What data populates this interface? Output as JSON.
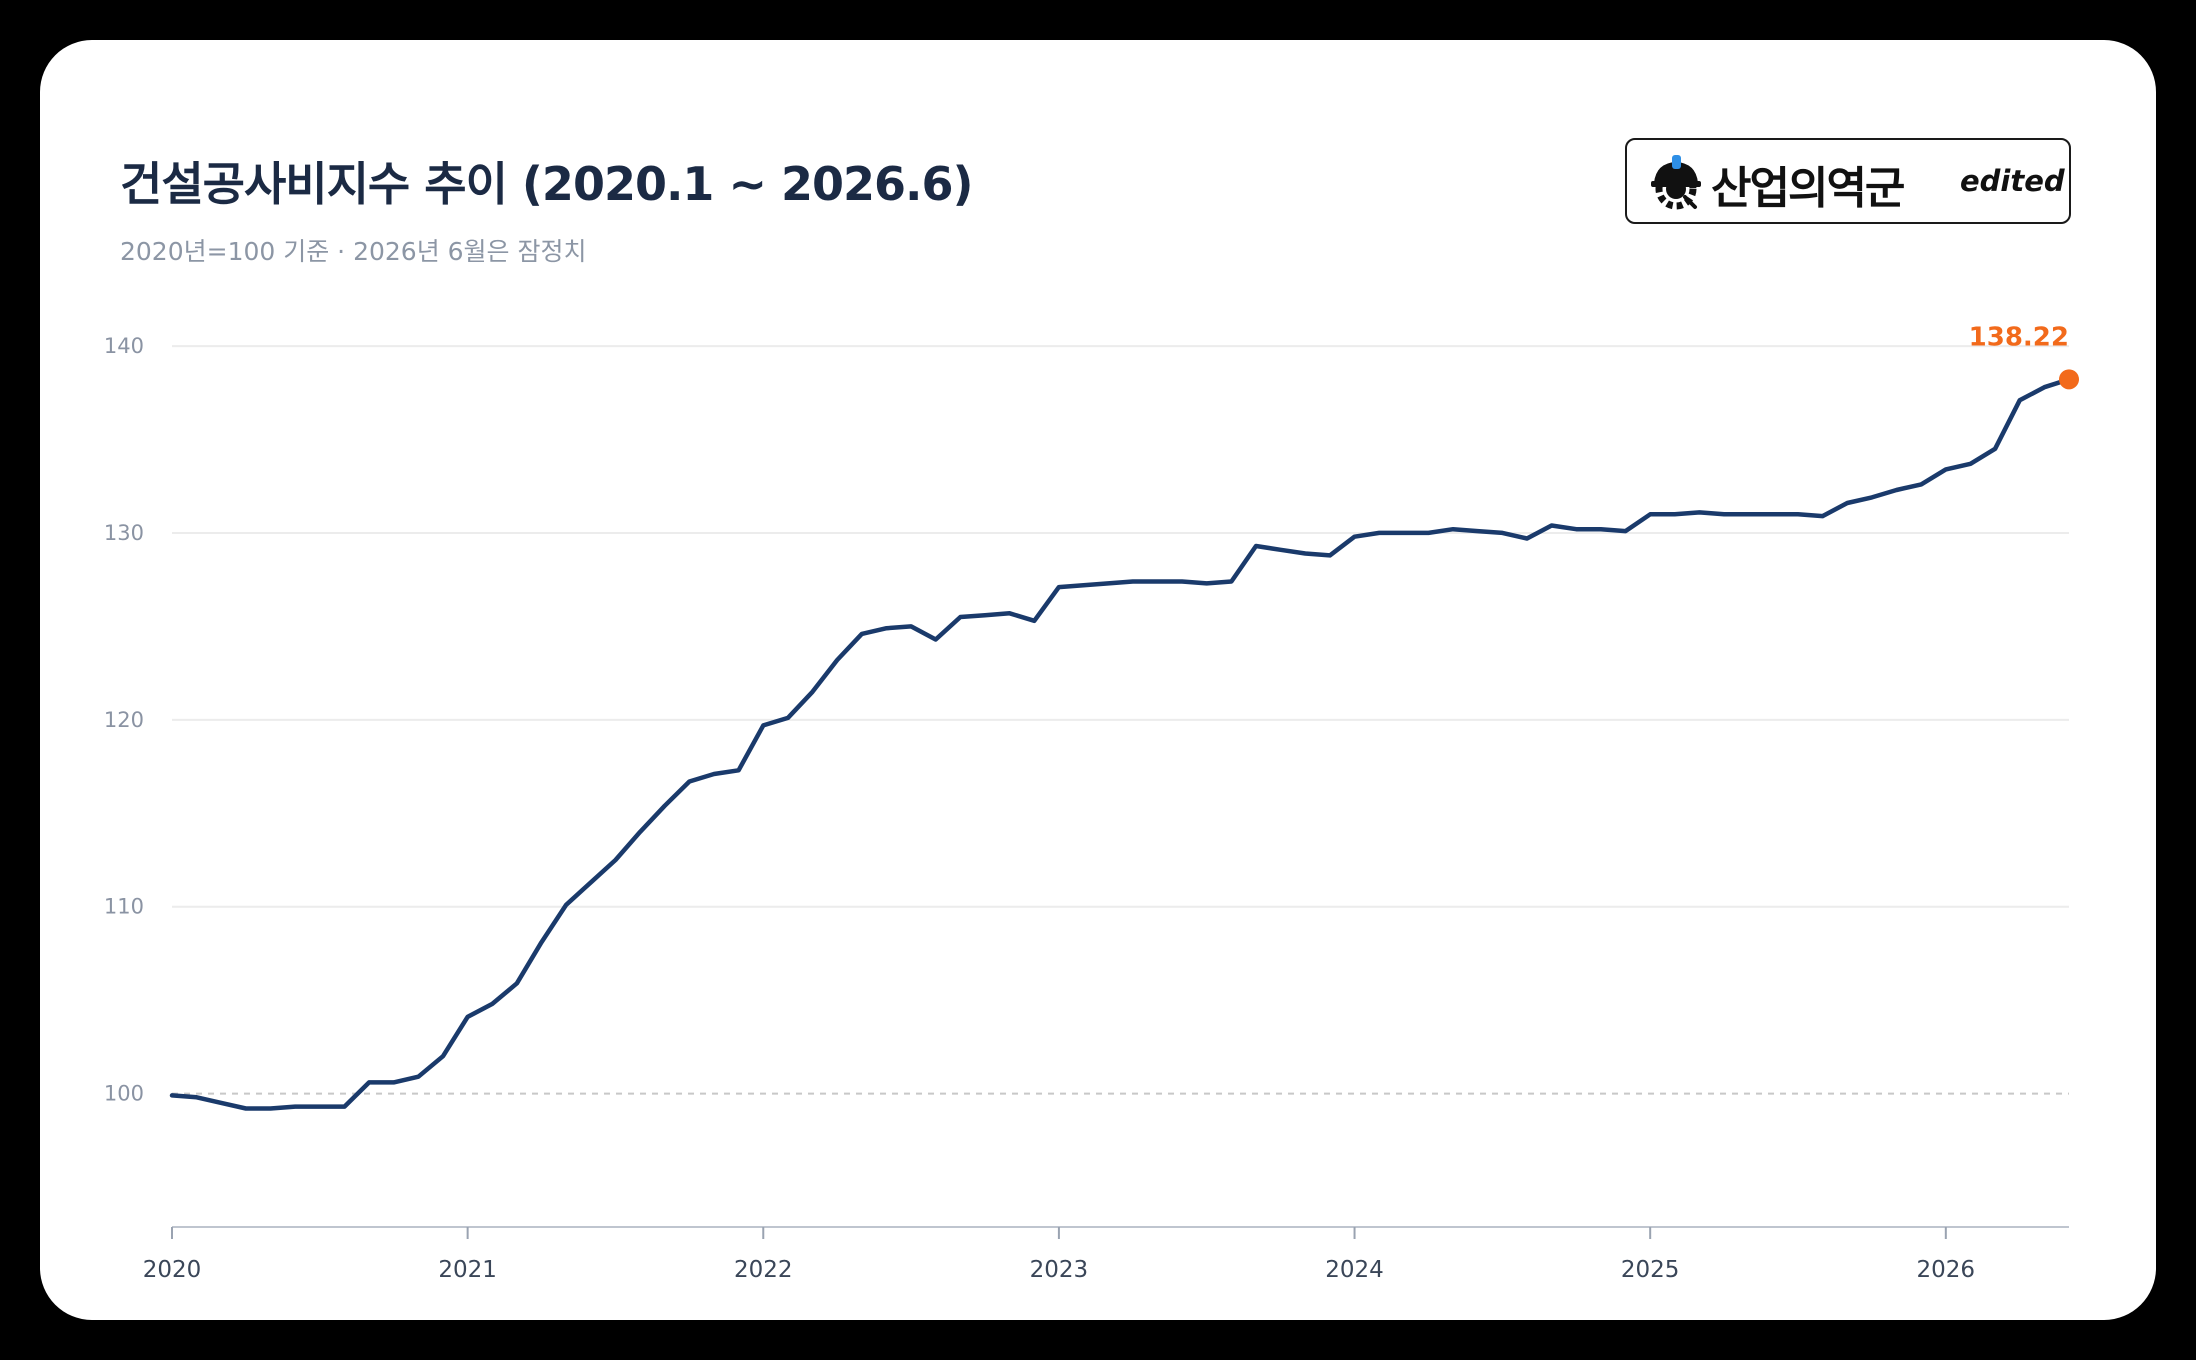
{
  "header": {
    "title": "건설공사비지수 추이 (2020.1 ~ 2026.6)",
    "subtitle": "2020년=100 기준 · 2026년 6월은 잠정치"
  },
  "logo": {
    "text": "산업의역군",
    "edited": "edited",
    "icon": "hardhat-gear-icon"
  },
  "colors": {
    "line": "#1a3a6b",
    "highlight": "#f26a1b",
    "grid": "#ececec",
    "baseline": "#c8c8c8"
  },
  "chart_data": {
    "type": "line",
    "title": "건설공사비지수 추이 (2020.1 ~ 2026.6)",
    "subtitle": "2020년=100 기준 · 2026년 6월은 잠정치",
    "xlabel": "",
    "ylabel": "",
    "ylim": [
      95,
      143
    ],
    "yticks": [
      100,
      110,
      120,
      130,
      140
    ],
    "xticks": [
      "2020",
      "2021",
      "2022",
      "2023",
      "2024",
      "2025",
      "2026"
    ],
    "grid": true,
    "reference_line": 100,
    "series": [
      {
        "x": [
          "2020-01",
          "2020-02",
          "2020-03",
          "2020-04",
          "2020-05",
          "2020-06",
          "2020-07",
          "2020-08",
          "2020-09",
          "2020-10",
          "2020-11",
          "2020-12",
          "2021-01",
          "2021-02",
          "2021-03",
          "2021-04",
          "2021-05",
          "2021-06",
          "2021-07",
          "2021-08",
          "2021-09",
          "2021-10",
          "2021-11",
          "2021-12",
          "2022-01",
          "2022-02",
          "2022-03",
          "2022-04",
          "2022-05",
          "2022-06",
          "2022-07",
          "2022-08",
          "2022-09",
          "2022-10",
          "2022-11",
          "2022-12",
          "2023-01",
          "2023-02",
          "2023-03",
          "2023-04",
          "2023-05",
          "2023-06",
          "2023-07",
          "2023-08",
          "2023-09",
          "2023-10",
          "2023-11",
          "2023-12",
          "2024-01",
          "2024-02",
          "2024-03",
          "2024-04",
          "2024-05",
          "2024-06",
          "2024-07",
          "2024-08",
          "2024-09",
          "2024-10",
          "2024-11",
          "2024-12",
          "2025-01",
          "2025-02",
          "2025-03",
          "2025-04",
          "2025-05",
          "2025-06",
          "2025-07",
          "2025-08",
          "2025-09",
          "2025-10",
          "2025-11",
          "2025-12",
          "2026-01",
          "2026-02",
          "2026-03",
          "2026-04",
          "2026-05",
          "2026-06"
        ],
        "values": [
          99.9,
          99.8,
          99.5,
          99.2,
          99.2,
          99.3,
          99.3,
          99.3,
          100.6,
          100.6,
          100.9,
          102.0,
          104.1,
          104.8,
          105.9,
          108.1,
          110.1,
          111.3,
          112.5,
          114.0,
          115.4,
          116.7,
          117.1,
          117.3,
          119.7,
          120.1,
          121.5,
          123.2,
          124.6,
          124.9,
          125.0,
          124.3,
          125.5,
          125.6,
          125.7,
          125.3,
          127.1,
          127.2,
          127.3,
          127.4,
          127.4,
          127.4,
          127.3,
          127.4,
          129.3,
          129.1,
          128.9,
          128.8,
          129.8,
          130.0,
          130.0,
          130.0,
          130.2,
          130.1,
          130.0,
          129.7,
          130.4,
          130.2,
          130.2,
          130.1,
          131.0,
          131.0,
          131.1,
          131.0,
          131.0,
          131.0,
          131.0,
          130.9,
          131.6,
          131.9,
          132.3,
          132.6,
          133.4,
          133.7,
          134.5,
          137.1,
          137.8,
          138.22
        ],
        "highlight_label": "138.22"
      }
    ]
  }
}
